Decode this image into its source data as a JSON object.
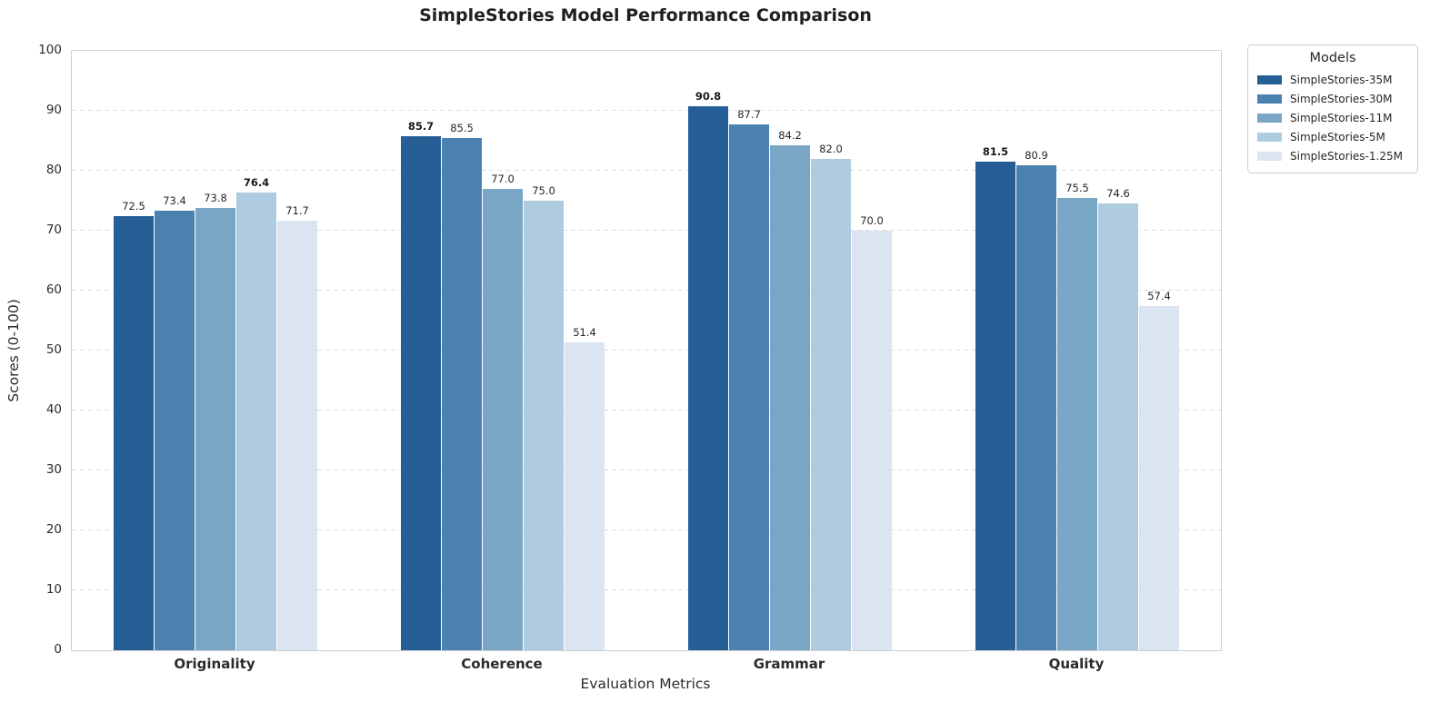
{
  "title": "SimpleStories Model Performance Comparison",
  "axes": {
    "xlabel": "Evaluation Metrics",
    "ylabel": "Scores (0-100)"
  },
  "legend": {
    "title": "Models"
  },
  "chart_data": {
    "type": "bar",
    "title": "SimpleStories Model Performance Comparison",
    "xlabel": "Evaluation Metrics",
    "ylabel": "Scores (0-100)",
    "ylim": [
      0,
      100
    ],
    "ytick_step": 10,
    "grid": "horizontal-dashed",
    "legend_title": "Models",
    "legend_position": "upper-right-outside",
    "value_labels": true,
    "bold_max_per_category": true,
    "categories": [
      "Originality",
      "Coherence",
      "Grammar",
      "Quality"
    ],
    "series": [
      {
        "name": "SimpleStories-35M",
        "color": "#265e96",
        "values": [
          72.5,
          85.7,
          90.8,
          81.5
        ]
      },
      {
        "name": "SimpleStories-30M",
        "color": "#4a81af",
        "values": [
          73.4,
          85.5,
          87.7,
          80.9
        ]
      },
      {
        "name": "SimpleStories-11M",
        "color": "#7aa6c6",
        "values": [
          73.8,
          77.0,
          84.2,
          75.5
        ]
      },
      {
        "name": "SimpleStories-5M",
        "color": "#aecbdf",
        "values": [
          76.4,
          75.0,
          82.0,
          74.6
        ]
      },
      {
        "name": "SimpleStories-1.25M",
        "color": "#dae5f1",
        "values": [
          71.7,
          51.4,
          70.0,
          57.4
        ]
      }
    ]
  }
}
